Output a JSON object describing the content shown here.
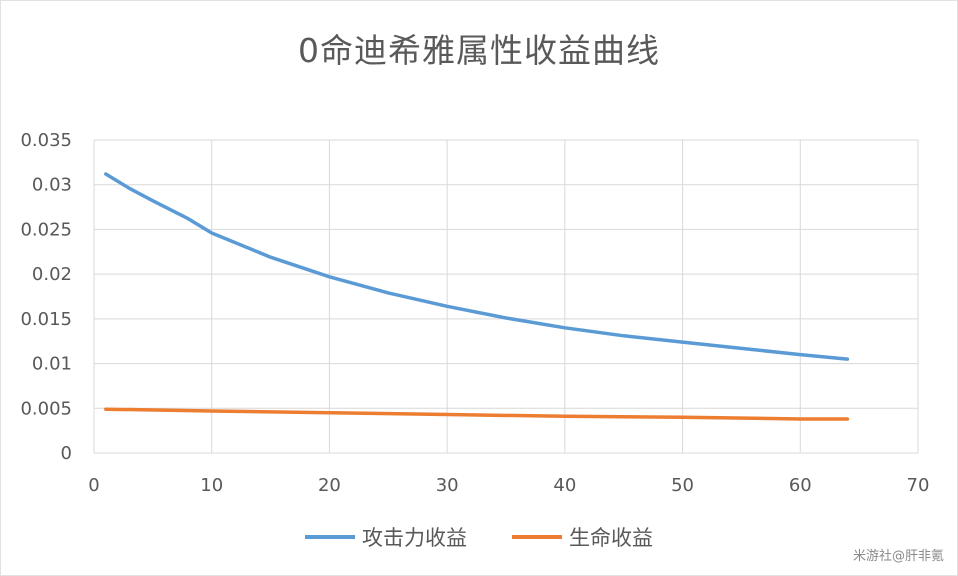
{
  "chart_data": {
    "type": "line",
    "title": "0命迪希雅属性收益曲线",
    "xlabel": "",
    "ylabel": "",
    "xlim": [
      0,
      70
    ],
    "ylim": [
      0,
      0.035
    ],
    "x_ticks": [
      "0",
      "10",
      "20",
      "30",
      "40",
      "50",
      "60",
      "70"
    ],
    "y_ticks": [
      "0",
      "0.005",
      "0.01",
      "0.015",
      "0.02",
      "0.025",
      "0.03",
      "0.035"
    ],
    "grid": true,
    "legend_position": "bottom",
    "series": [
      {
        "name": "攻击力收益",
        "color": "#5b9bd5",
        "x": [
          1,
          3,
          5,
          8,
          10,
          15,
          20,
          25,
          30,
          35,
          40,
          45,
          50,
          55,
          60,
          64
        ],
        "y": [
          0.0312,
          0.0296,
          0.0282,
          0.0262,
          0.0246,
          0.0219,
          0.0197,
          0.0179,
          0.0164,
          0.0151,
          0.014,
          0.0131,
          0.0124,
          0.0117,
          0.011,
          0.0105
        ]
      },
      {
        "name": "生命收益",
        "color": "#ed7d31",
        "x": [
          1,
          10,
          20,
          30,
          40,
          50,
          60,
          64
        ],
        "y": [
          0.0049,
          0.0047,
          0.0045,
          0.0043,
          0.0041,
          0.004,
          0.0038,
          0.0038
        ]
      }
    ]
  },
  "watermark": "米游社@肝非氪"
}
